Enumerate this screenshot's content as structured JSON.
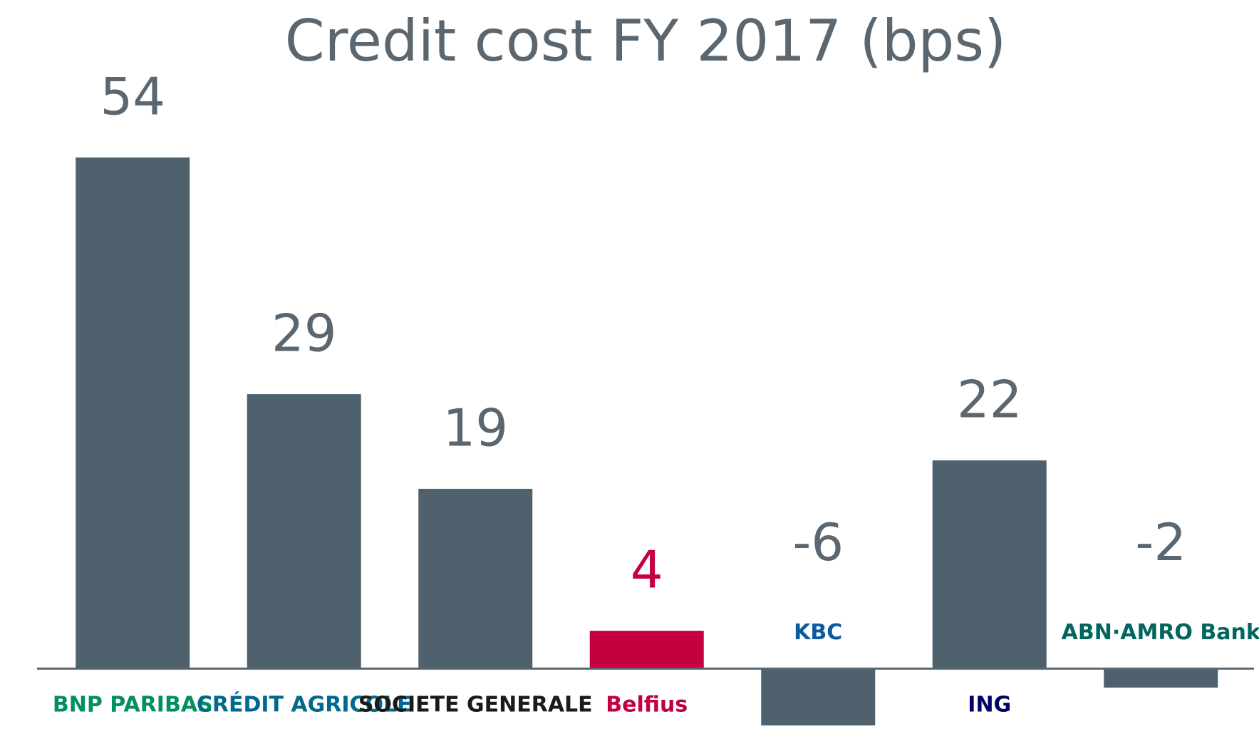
{
  "chart_data": {
    "type": "bar",
    "title": "Credit cost FY 2017 (bps)",
    "categories": [
      "BNP PARIBAS",
      "CRÉDIT AGRICOLE",
      "SOCIETE GENERALE",
      "Belfius",
      "KBC",
      "ING",
      "ABN·AMRO Bank"
    ],
    "values": [
      54,
      29,
      19,
      4,
      -6,
      22,
      -2
    ],
    "colors": [
      "#50616e",
      "#50616e",
      "#50616e",
      "#c4003f",
      "#50616e",
      "#50616e",
      "#50616e"
    ],
    "category_colors": [
      "#00915a",
      "#00698c",
      "#1a1a1a",
      "#c4003f",
      "#0a5aa0",
      "#000066",
      "#00665e"
    ],
    "ylim": [
      -6,
      54
    ]
  }
}
